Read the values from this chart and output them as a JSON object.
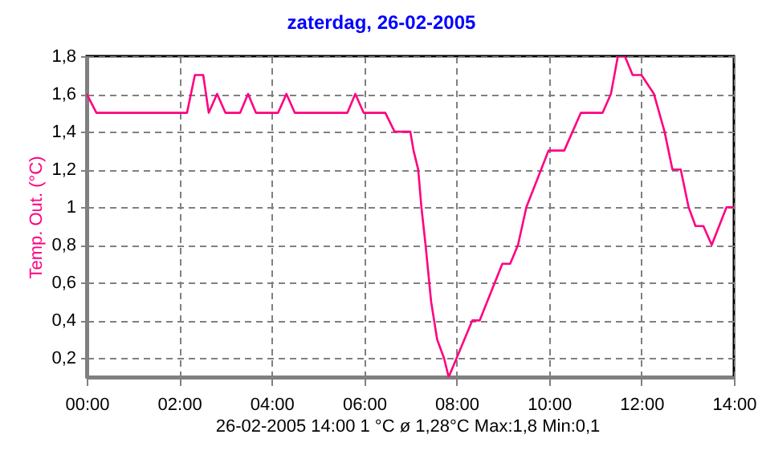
{
  "chart_data": {
    "type": "line",
    "title": "zaterdag, 26-02-2005",
    "ylabel": "Temp. Out. (°C)",
    "annotations": [
      "26-02-2005  14:00   1 °C   ø 1,28°C  Max:1,8  Min:0,1"
    ],
    "x": [
      0,
      0.21,
      2.17,
      2.34,
      2.52,
      2.64,
      2.82,
      3.0,
      3.32,
      3.49,
      3.66,
      4.14,
      4.32,
      4.5,
      5.64,
      5.81,
      5.99,
      6.46,
      6.66,
      7.0,
      7.07,
      7.17,
      7.24,
      7.33,
      7.45,
      7.58,
      7.73,
      7.83,
      8.0,
      8.34,
      8.5,
      8.99,
      9.16,
      9.33,
      9.51,
      9.83,
      9.99,
      10.33,
      10.69,
      11.16,
      11.34,
      11.49,
      11.64,
      11.81,
      12.0,
      12.27,
      12.5,
      12.67,
      12.85,
      13.02,
      13.17,
      13.34,
      13.52,
      13.84,
      14.0
    ],
    "series": [
      {
        "color": "#ff0080",
        "values": [
          1.6,
          1.5,
          1.5,
          1.7,
          1.7,
          1.5,
          1.6,
          1.5,
          1.5,
          1.6,
          1.5,
          1.5,
          1.6,
          1.5,
          1.5,
          1.6,
          1.5,
          1.5,
          1.4,
          1.4,
          1.3,
          1.2,
          1.0,
          0.8,
          0.5,
          0.3,
          0.2,
          0.1,
          0.2,
          0.4,
          0.4,
          0.7,
          0.7,
          0.8,
          1.0,
          1.2,
          1.3,
          1.3,
          1.5,
          1.5,
          1.6,
          1.8,
          1.8,
          1.7,
          1.7,
          1.6,
          1.4,
          1.2,
          1.2,
          1.0,
          0.9,
          0.9,
          0.8,
          1.0,
          1.0
        ]
      }
    ],
    "xlim": [
      0,
      14
    ],
    "xticks": [
      {
        "value": 0,
        "label": "00:00"
      },
      {
        "value": 2,
        "label": "02:00"
      },
      {
        "value": 4,
        "label": "04:00"
      },
      {
        "value": 6,
        "label": "06:00"
      },
      {
        "value": 8,
        "label": "08:00"
      },
      {
        "value": 10,
        "label": "10:00"
      },
      {
        "value": 12,
        "label": "12:00"
      },
      {
        "value": 14,
        "label": "14:00"
      }
    ],
    "ylim": [
      0.1,
      1.8
    ],
    "yticks": [
      {
        "value": 0.2,
        "label": "0,2"
      },
      {
        "value": 0.4,
        "label": "0,4"
      },
      {
        "value": 0.6,
        "label": "0,6"
      },
      {
        "value": 0.8,
        "label": "0,8"
      },
      1,
      {
        "value": 1.2,
        "label": "1,2"
      },
      {
        "value": 1.4,
        "label": "1,4"
      },
      {
        "value": 1.6,
        "label": "1,6"
      },
      {
        "value": 1.8,
        "label": "1,8"
      }
    ],
    "grid": true,
    "marker": "none",
    "line_style": "solid"
  }
}
